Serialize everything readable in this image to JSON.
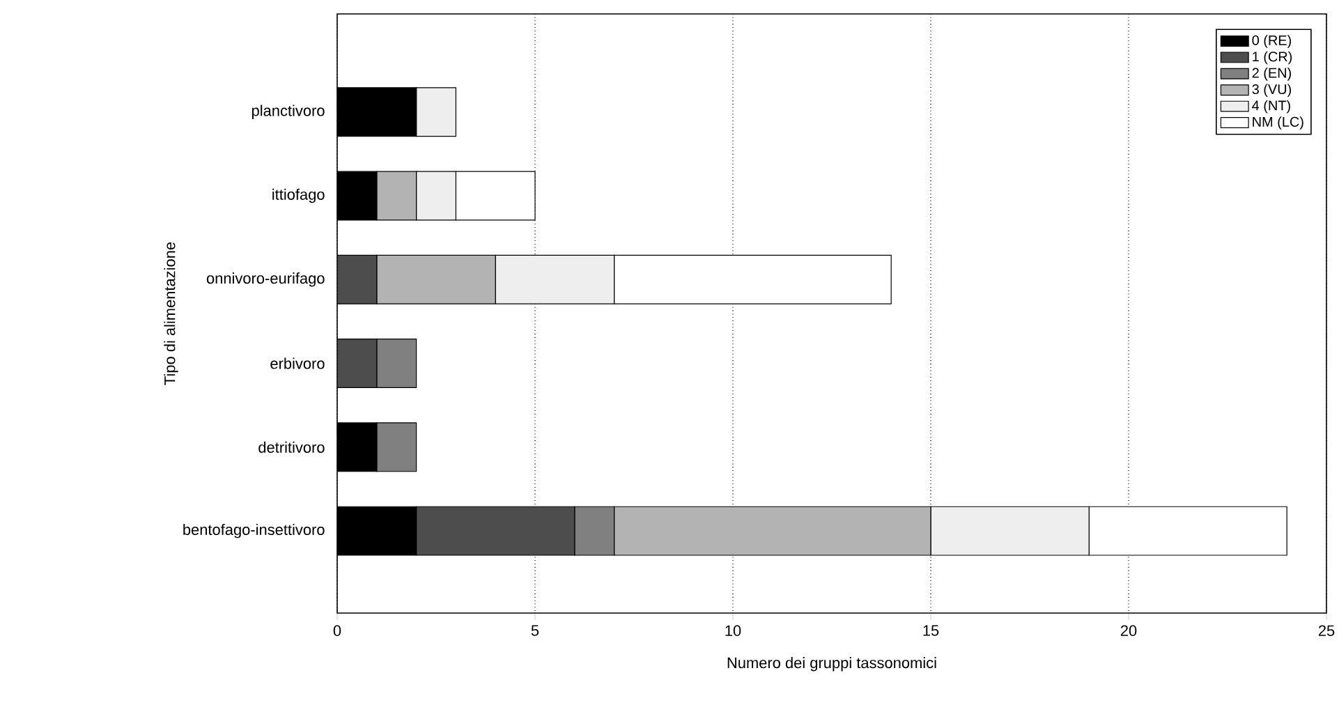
{
  "chart_data": {
    "type": "bar",
    "orientation": "horizontal",
    "stacked": true,
    "xlabel": "Numero dei gruppi tassonomici",
    "ylabel": "Tipo di alimentazione",
    "categories": [
      "planctivoro",
      "ittiofago",
      "onnivoro-eurifago",
      "erbivoro",
      "detritivoro",
      "bentofago-insettivoro"
    ],
    "series": [
      {
        "name": "0 (RE)",
        "color": "#000000",
        "values": [
          2,
          1,
          0,
          0,
          1,
          2
        ]
      },
      {
        "name": "1 (CR)",
        "color": "#4d4d4d",
        "values": [
          0,
          0,
          1,
          1,
          0,
          4
        ]
      },
      {
        "name": "2 (EN)",
        "color": "#808080",
        "values": [
          0,
          0,
          0,
          1,
          1,
          1
        ]
      },
      {
        "name": "3 (VU)",
        "color": "#b3b3b3",
        "values": [
          0,
          1,
          3,
          0,
          0,
          8
        ]
      },
      {
        "name": "4 (NT)",
        "color": "#eeeeee",
        "values": [
          1,
          1,
          3,
          0,
          0,
          4
        ]
      },
      {
        "name": "NM (LC)",
        "color": "#ffffff",
        "values": [
          0,
          2,
          7,
          0,
          0,
          5
        ]
      }
    ],
    "xlim": [
      0,
      25
    ],
    "xticks": [
      0,
      5,
      10,
      15,
      20,
      25
    ],
    "grid": "x",
    "legend": "top right"
  }
}
